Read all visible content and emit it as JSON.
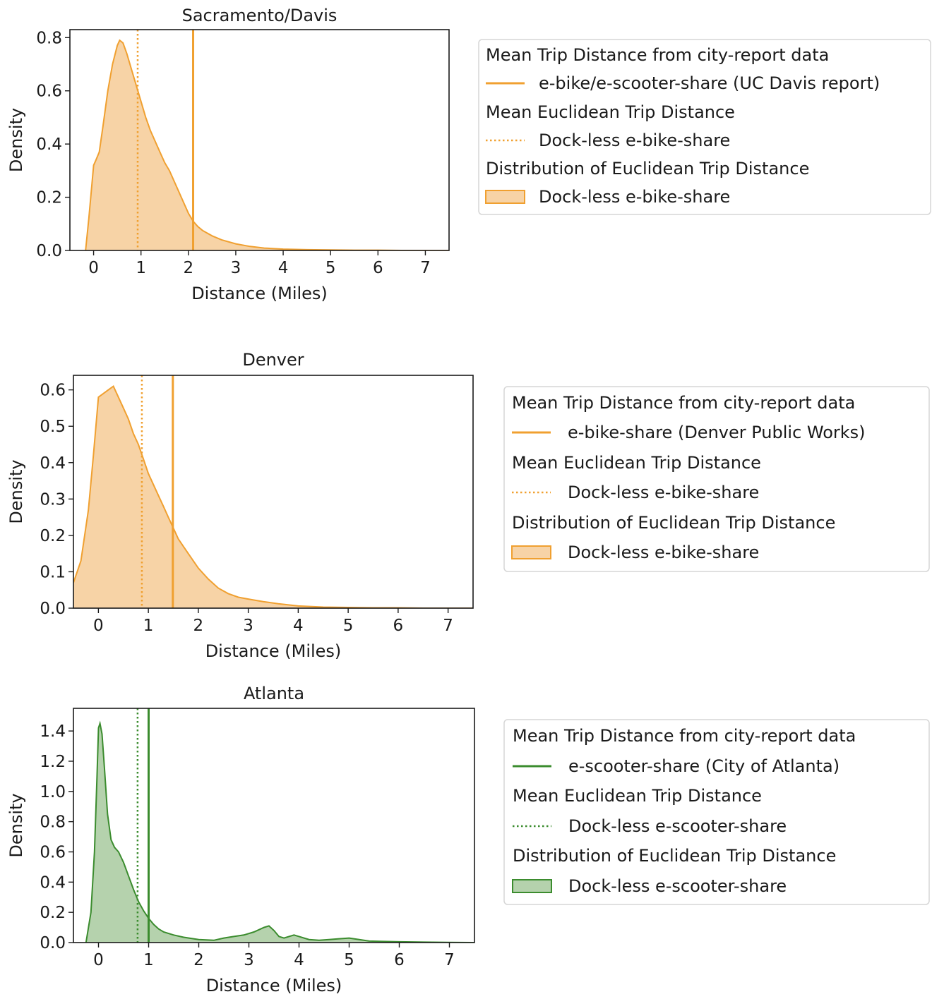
{
  "chart_data": [
    {
      "type": "area",
      "title": "Sacramento/Davis",
      "xlabel": "Distance (Miles)",
      "ylabel": "Density",
      "xlim": [
        -0.5,
        7.5
      ],
      "ylim": [
        0,
        0.83
      ],
      "xticks": [
        "0",
        "1",
        "2",
        "3",
        "4",
        "5",
        "6",
        "7"
      ],
      "yticks": [
        "0.0",
        "0.2",
        "0.4",
        "0.6",
        "0.8"
      ],
      "color": "#f0a030",
      "fill": "#f7d3a6",
      "mean_city_report": 2.1,
      "mean_euclidean": 0.93,
      "series": [
        {
          "name": "Dock-less e-bike-share",
          "x": [
            -0.17,
            -0.1,
            0.0,
            0.05,
            0.12,
            0.2,
            0.3,
            0.4,
            0.5,
            0.55,
            0.62,
            0.7,
            0.8,
            0.9,
            1.0,
            1.1,
            1.2,
            1.3,
            1.4,
            1.5,
            1.6,
            1.7,
            1.8,
            1.9,
            2.0,
            2.1,
            2.2,
            2.3,
            2.5,
            2.7,
            3.0,
            3.3,
            3.6,
            4.0,
            4.5,
            5.0,
            5.5,
            6.0,
            6.5,
            7.0,
            7.5
          ],
          "y": [
            0.0,
            0.12,
            0.32,
            0.34,
            0.37,
            0.47,
            0.6,
            0.7,
            0.77,
            0.79,
            0.78,
            0.74,
            0.68,
            0.62,
            0.56,
            0.5,
            0.45,
            0.41,
            0.37,
            0.33,
            0.3,
            0.26,
            0.22,
            0.18,
            0.14,
            0.11,
            0.09,
            0.075,
            0.055,
            0.04,
            0.025,
            0.015,
            0.009,
            0.005,
            0.003,
            0.002,
            0.001,
            0.001,
            0.0,
            0.0,
            0.0
          ]
        }
      ],
      "legend": {
        "placement": "right",
        "entries": [
          {
            "kind": "header",
            "label": "Mean Trip Distance from city-report data"
          },
          {
            "kind": "solid",
            "label": "e-bike/e-scooter-share (UC Davis report)"
          },
          {
            "kind": "header",
            "label": "Mean Euclidean Trip Distance"
          },
          {
            "kind": "dotted",
            "label": "Dock-less e-bike-share"
          },
          {
            "kind": "header",
            "label": "Distribution of Euclidean Trip Distance"
          },
          {
            "kind": "patch",
            "label": "Dock-less e-bike-share"
          }
        ]
      }
    },
    {
      "type": "area",
      "title": "Denver",
      "xlabel": "Distance (Miles)",
      "ylabel": "Density",
      "xlim": [
        -0.5,
        7.5
      ],
      "ylim": [
        0,
        0.64
      ],
      "xticks": [
        "0",
        "1",
        "2",
        "3",
        "4",
        "5",
        "6",
        "7"
      ],
      "yticks": [
        "0.0",
        "0.1",
        "0.2",
        "0.3",
        "0.4",
        "0.5",
        "0.6"
      ],
      "color": "#f0a030",
      "fill": "#f7d3a6",
      "mean_city_report": 1.49,
      "mean_euclidean": 0.87,
      "series": [
        {
          "name": "Dock-less e-bike-share",
          "x": [
            -0.5,
            -0.35,
            -0.2,
            -0.1,
            0.0,
            0.1,
            0.2,
            0.3,
            0.4,
            0.5,
            0.6,
            0.7,
            0.8,
            0.9,
            1.0,
            1.1,
            1.2,
            1.3,
            1.4,
            1.5,
            1.6,
            1.7,
            1.8,
            2.0,
            2.2,
            2.4,
            2.6,
            2.8,
            3.0,
            3.3,
            3.6,
            4.0,
            4.5,
            5.0,
            5.5,
            6.0,
            6.5,
            7.0,
            7.5
          ],
          "y": [
            0.07,
            0.13,
            0.27,
            0.42,
            0.58,
            0.59,
            0.6,
            0.61,
            0.58,
            0.55,
            0.52,
            0.48,
            0.45,
            0.41,
            0.37,
            0.34,
            0.31,
            0.28,
            0.25,
            0.22,
            0.19,
            0.17,
            0.15,
            0.11,
            0.08,
            0.055,
            0.04,
            0.03,
            0.025,
            0.018,
            0.012,
            0.006,
            0.003,
            0.002,
            0.001,
            0.001,
            0.0,
            0.0,
            0.0
          ]
        }
      ],
      "legend": {
        "placement": "right",
        "entries": [
          {
            "kind": "header",
            "label": "Mean Trip Distance from city-report data"
          },
          {
            "kind": "solid",
            "label": "e-bike-share (Denver Public Works)"
          },
          {
            "kind": "header",
            "label": "Mean Euclidean Trip Distance"
          },
          {
            "kind": "dotted",
            "label": "Dock-less e-bike-share"
          },
          {
            "kind": "header",
            "label": "Distribution of Euclidean Trip Distance"
          },
          {
            "kind": "patch",
            "label": "Dock-less e-bike-share"
          }
        ]
      }
    },
    {
      "type": "area",
      "title": "Atlanta",
      "xlabel": "Distance (Miles)",
      "ylabel": "Density",
      "xlim": [
        -0.5,
        7.5
      ],
      "ylim": [
        0,
        1.55
      ],
      "xticks": [
        "0",
        "1",
        "2",
        "3",
        "4",
        "5",
        "6",
        "7"
      ],
      "yticks": [
        "0.0",
        "0.2",
        "0.4",
        "0.6",
        "0.8",
        "1.0",
        "1.2",
        "1.4"
      ],
      "color": "#3b8c2e",
      "fill": "#b5d2ad",
      "mean_city_report": 1.0,
      "mean_euclidean": 0.78,
      "series": [
        {
          "name": "Dock-less e-scooter-share",
          "x": [
            -0.25,
            -0.15,
            -0.08,
            -0.03,
            0.0,
            0.03,
            0.07,
            0.12,
            0.18,
            0.25,
            0.32,
            0.4,
            0.5,
            0.6,
            0.7,
            0.8,
            0.9,
            1.0,
            1.1,
            1.2,
            1.3,
            1.5,
            1.7,
            2.0,
            2.3,
            2.5,
            2.7,
            2.9,
            3.1,
            3.3,
            3.4,
            3.5,
            3.6,
            3.7,
            3.8,
            3.9,
            4.0,
            4.2,
            4.4,
            4.6,
            4.8,
            5.0,
            5.2,
            5.4,
            5.6,
            6.0,
            6.5,
            7.0,
            7.5
          ],
          "y": [
            0.0,
            0.2,
            0.6,
            1.1,
            1.42,
            1.45,
            1.38,
            1.15,
            0.85,
            0.68,
            0.63,
            0.6,
            0.53,
            0.44,
            0.35,
            0.27,
            0.21,
            0.16,
            0.12,
            0.09,
            0.07,
            0.05,
            0.035,
            0.02,
            0.015,
            0.03,
            0.04,
            0.05,
            0.07,
            0.1,
            0.11,
            0.08,
            0.04,
            0.03,
            0.04,
            0.05,
            0.04,
            0.02,
            0.015,
            0.02,
            0.025,
            0.03,
            0.02,
            0.01,
            0.008,
            0.005,
            0.003,
            0.001,
            0.0
          ]
        }
      ],
      "legend": {
        "placement": "right",
        "entries": [
          {
            "kind": "header",
            "label": "Mean Trip Distance from city-report data"
          },
          {
            "kind": "solid",
            "label": "e-scooter-share (City of Atlanta)"
          },
          {
            "kind": "header",
            "label": "Mean Euclidean Trip Distance"
          },
          {
            "kind": "dotted",
            "label": "Dock-less e-scooter-share"
          },
          {
            "kind": "header",
            "label": "Distribution of Euclidean Trip Distance"
          },
          {
            "kind": "patch",
            "label": "Dock-less e-scooter-share"
          }
        ]
      }
    }
  ]
}
